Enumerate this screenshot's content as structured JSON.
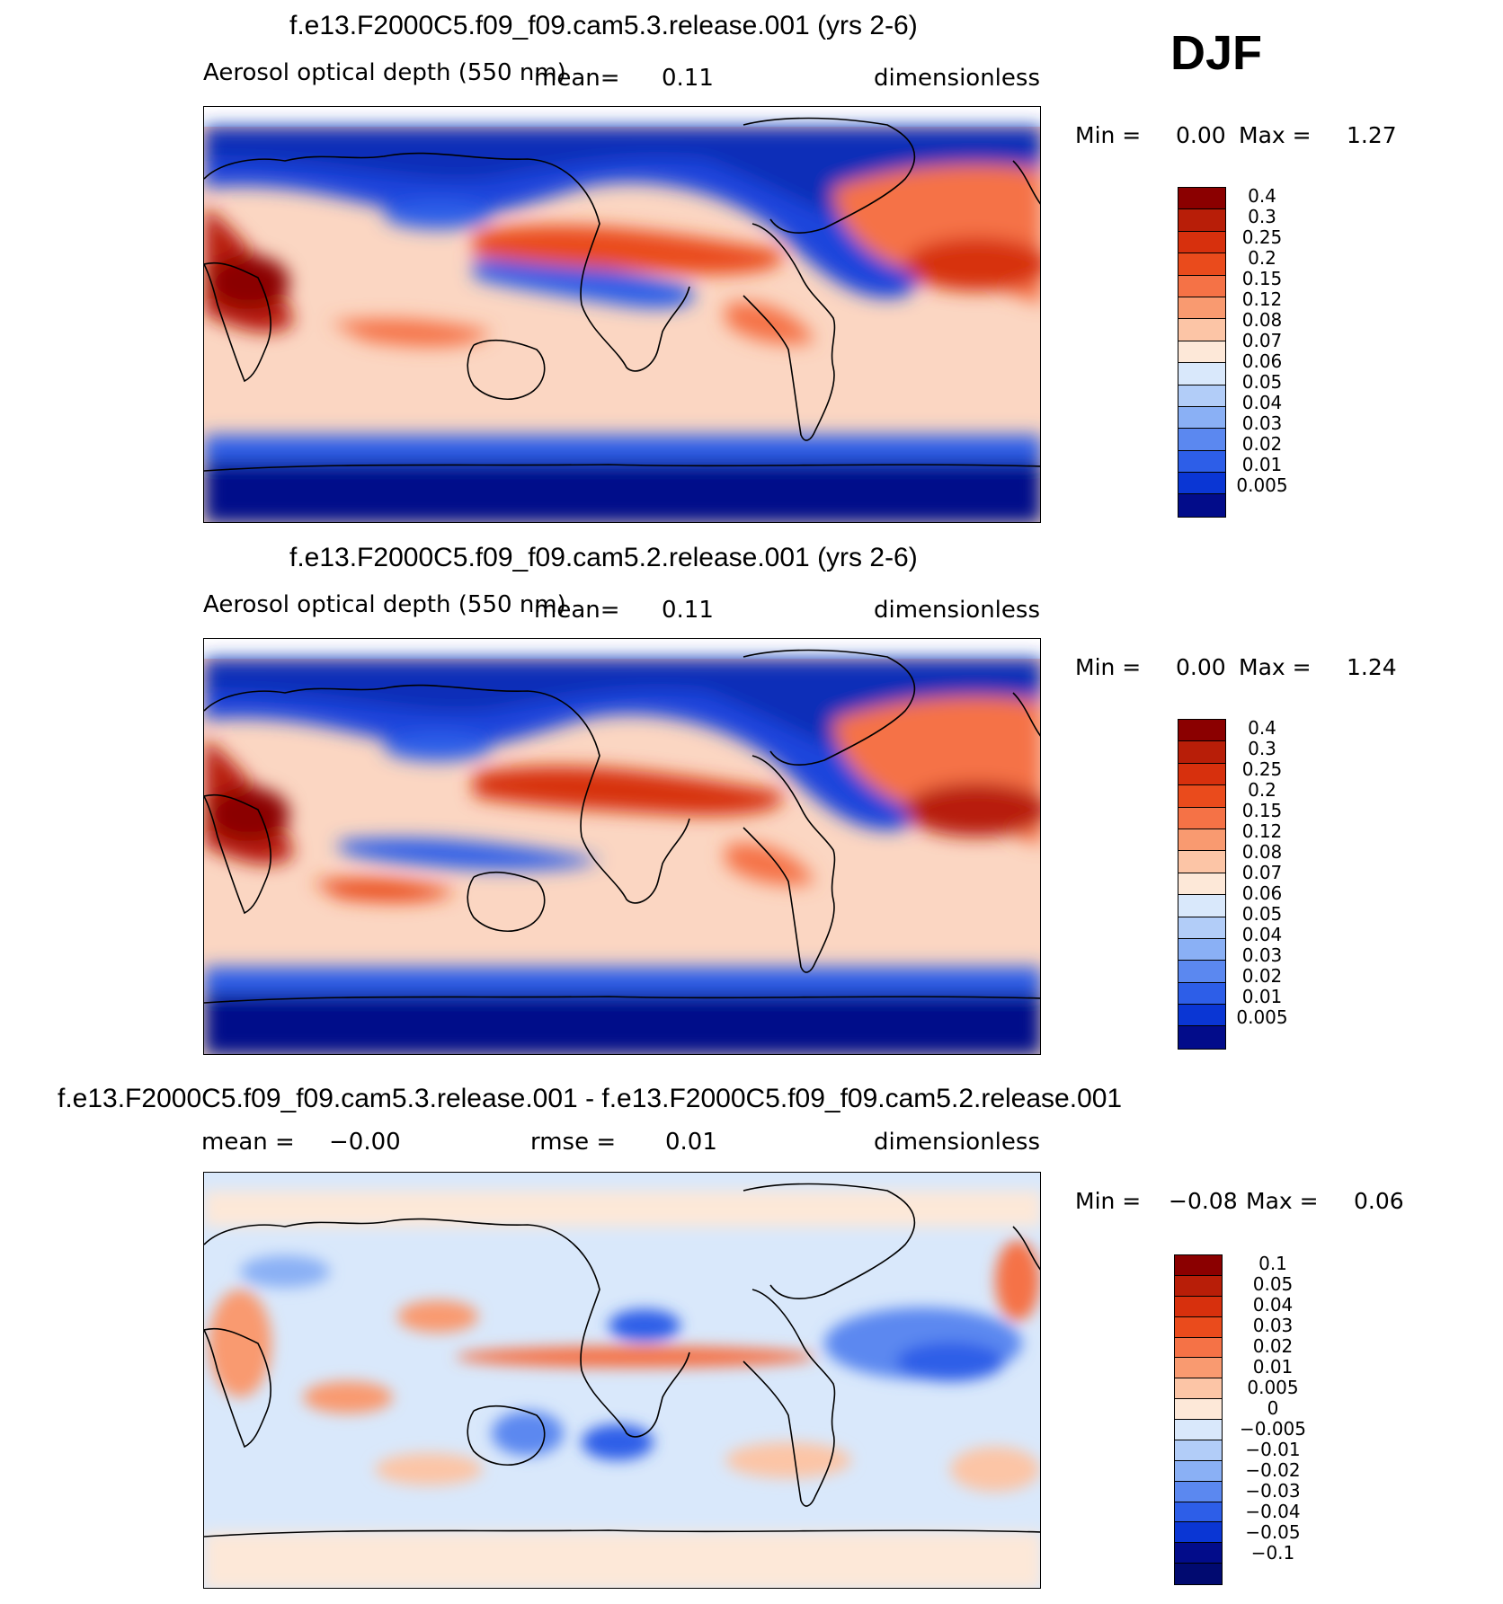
{
  "season": "DJF",
  "panels": [
    {
      "title": "f.e13.F2000C5.f09_f09.cam5.3.release.001 (yrs 2-6)",
      "variable": "Aerosol optical depth (550 nm)",
      "mean_label": "mean=",
      "mean_value": "0.11",
      "units": "dimensionless",
      "min_label": "Min =",
      "min_value": "0.00",
      "max_label": "Max =",
      "max_value": "1.27"
    },
    {
      "title": "f.e13.F2000C5.f09_f09.cam5.2.release.001 (yrs 2-6)",
      "variable": "Aerosol optical depth (550 nm)",
      "mean_label": "mean=",
      "mean_value": "0.11",
      "units": "dimensionless",
      "min_label": "Min =",
      "min_value": "0.00",
      "max_label": "Max =",
      "max_value": "1.24"
    },
    {
      "title": "f.e13.F2000C5.f09_f09.cam5.3.release.001 - f.e13.F2000C5.f09_f09.cam5.2.release.001",
      "mean_label": "mean =",
      "mean_value": "−0.00",
      "rmse_label": "rmse =",
      "rmse_value": "0.01",
      "units": "dimensionless",
      "min_label": "Min =",
      "min_value": "−0.08",
      "max_label": "Max =",
      "max_value": "0.06"
    }
  ],
  "chart_data": [
    {
      "type": "heatmap",
      "title": "f.e13.F2000C5.f09_f09.cam5.3.release.001 (yrs 2-6)",
      "field": "Aerosol optical depth (550 nm)",
      "units": "dimensionless",
      "mean": 0.11,
      "min": 0.0,
      "max": 1.27,
      "colorbar_levels": [
        "0.4",
        "0.3",
        "0.25",
        "0.2",
        "0.15",
        "0.12",
        "0.08",
        "0.07",
        "0.06",
        "0.05",
        "0.04",
        "0.03",
        "0.02",
        "0.01",
        "0.005"
      ],
      "colorbar_colors": [
        "#8b0000",
        "#b81e08",
        "#d7300d",
        "#ea4b1c",
        "#f57246",
        "#f99a70",
        "#fcc5a6",
        "#fde8d8",
        "#d9e8fb",
        "#b2cdf8",
        "#8ab0f5",
        "#5b88f0",
        "#2d5ee8",
        "#0a36d4",
        "#020c8a"
      ]
    },
    {
      "type": "heatmap",
      "title": "f.e13.F2000C5.f09_f09.cam5.2.release.001 (yrs 2-6)",
      "field": "Aerosol optical depth (550 nm)",
      "units": "dimensionless",
      "mean": 0.11,
      "min": 0.0,
      "max": 1.24,
      "colorbar_levels": [
        "0.4",
        "0.3",
        "0.25",
        "0.2",
        "0.15",
        "0.12",
        "0.08",
        "0.07",
        "0.06",
        "0.05",
        "0.04",
        "0.03",
        "0.02",
        "0.01",
        "0.005"
      ],
      "colorbar_colors": [
        "#8b0000",
        "#b81e08",
        "#d7300d",
        "#ea4b1c",
        "#f57246",
        "#f99a70",
        "#fcc5a6",
        "#fde8d8",
        "#d9e8fb",
        "#b2cdf8",
        "#8ab0f5",
        "#5b88f0",
        "#2d5ee8",
        "#0a36d4",
        "#020c8a"
      ]
    },
    {
      "type": "heatmap",
      "title": "f.e13.F2000C5.f09_f09.cam5.3.release.001 - f.e13.F2000C5.f09_f09.cam5.2.release.001",
      "units": "dimensionless",
      "mean": -0.0,
      "rmse": 0.01,
      "min": -0.08,
      "max": 0.06,
      "colorbar_levels": [
        "0.1",
        "0.05",
        "0.04",
        "0.03",
        "0.02",
        "0.01",
        "0.005",
        "0",
        "−0.005",
        "−0.01",
        "−0.02",
        "−0.03",
        "−0.04",
        "−0.05",
        "−0.1"
      ],
      "colorbar_colors": [
        "#8b0000",
        "#b81e08",
        "#d7300d",
        "#ea4b1c",
        "#f57246",
        "#f99a70",
        "#fcc5a6",
        "#fde8d8",
        "#d9e8fb",
        "#b2cdf8",
        "#8ab0f5",
        "#5b88f0",
        "#2d5ee8",
        "#0a36d4",
        "#020c8a",
        "#010a70"
      ]
    }
  ]
}
